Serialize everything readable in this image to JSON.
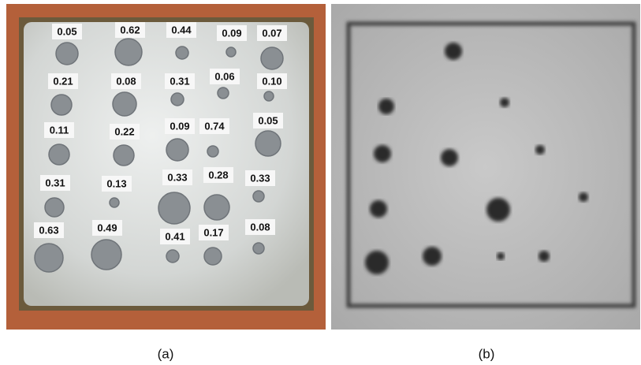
{
  "panels": [
    {
      "caption": "(a)",
      "labels": [
        "0.05",
        "0.62",
        "0.44",
        "0.09",
        "0.07",
        "0.21",
        "0.08",
        "0.31",
        "0.06",
        "0.10",
        "0.11",
        "0.22",
        "0.09",
        "0.74",
        "0.05",
        "0.31",
        "0.13",
        "0.33",
        "0.28",
        "0.33",
        "0.63",
        "0.49",
        "0.41",
        "0.17",
        "0.08"
      ]
    },
    {
      "caption": "(b)"
    }
  ]
}
